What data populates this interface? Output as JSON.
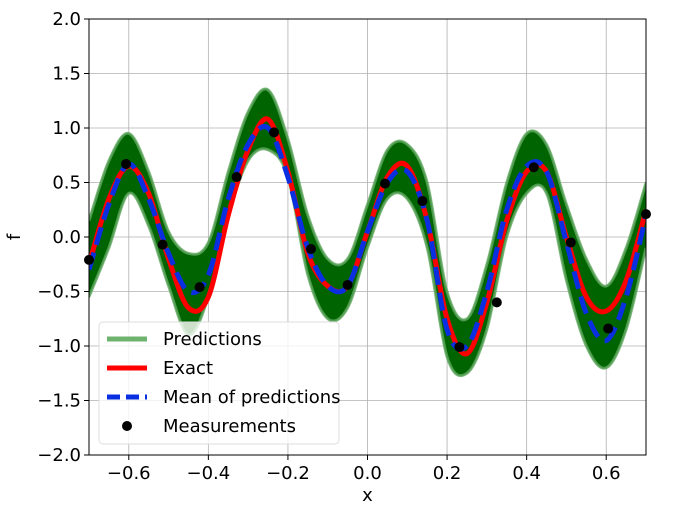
{
  "chart_data": {
    "type": "line",
    "title": "",
    "xlabel": "x",
    "ylabel": "f",
    "xlim": [
      -0.7,
      0.7
    ],
    "ylim": [
      -2.0,
      2.0
    ],
    "grid": true,
    "x_ticks": [
      -0.6,
      -0.4,
      -0.2,
      0.0,
      0.2,
      0.4,
      0.6
    ],
    "x_tick_labels": [
      "−0.6",
      "−0.4",
      "−0.2",
      "0.0",
      "0.2",
      "0.4",
      "0.6"
    ],
    "y_ticks": [
      -2.0,
      -1.5,
      -1.0,
      -0.5,
      0.0,
      0.5,
      1.0,
      1.5,
      2.0
    ],
    "y_tick_labels": [
      "−2.0",
      "−1.5",
      "−1.0",
      "−0.5",
      "0.0",
      "0.5",
      "1.0",
      "1.5",
      "2.0"
    ],
    "legend_position": "lower-left",
    "series": [
      {
        "name": "Predictions",
        "style": "band",
        "color": "#006400",
        "legend_color": "#6db26d",
        "x": [
          -0.7,
          -0.65,
          -0.6,
          -0.55,
          -0.5,
          -0.45,
          -0.4,
          -0.35,
          -0.3,
          -0.25,
          -0.2,
          -0.15,
          -0.1,
          -0.05,
          0.0,
          0.05,
          0.1,
          0.15,
          0.2,
          0.25,
          0.3,
          0.35,
          0.4,
          0.45,
          0.5,
          0.55,
          0.6,
          0.65,
          0.7
        ],
        "upper": [
          0.15,
          0.7,
          0.95,
          0.6,
          0.05,
          -0.15,
          -0.05,
          0.6,
          1.15,
          1.35,
          0.9,
          0.2,
          -0.2,
          -0.2,
          0.3,
          0.8,
          0.85,
          0.5,
          -0.5,
          -0.75,
          -0.25,
          0.5,
          0.95,
          0.85,
          0.3,
          -0.2,
          -0.45,
          -0.1,
          0.5
        ],
        "lower": [
          -0.55,
          -0.1,
          0.4,
          0.1,
          -0.45,
          -0.9,
          -0.55,
          0.2,
          0.7,
          0.8,
          0.55,
          -0.35,
          -0.75,
          -0.65,
          -0.1,
          0.35,
          0.35,
          -0.1,
          -1.1,
          -1.25,
          -0.85,
          0.0,
          0.4,
          0.4,
          -0.4,
          -1.0,
          -1.2,
          -0.85,
          -0.1
        ]
      },
      {
        "name": "Exact",
        "style": "solid",
        "color": "#ff0000",
        "x": [
          -0.7,
          -0.65,
          -0.6,
          -0.55,
          -0.5,
          -0.45,
          -0.4,
          -0.35,
          -0.3,
          -0.25,
          -0.2,
          -0.15,
          -0.1,
          -0.05,
          0.0,
          0.05,
          0.1,
          0.15,
          0.2,
          0.25,
          0.3,
          0.35,
          0.4,
          0.45,
          0.5,
          0.55,
          0.6,
          0.65,
          0.7
        ],
        "y": [
          -0.25,
          0.35,
          0.65,
          0.4,
          -0.2,
          -0.65,
          -0.55,
          0.2,
          0.8,
          1.08,
          0.6,
          -0.15,
          -0.45,
          -0.45,
          0.05,
          0.55,
          0.65,
          0.15,
          -0.75,
          -1.07,
          -0.6,
          0.15,
          0.6,
          0.6,
          0.0,
          -0.55,
          -0.68,
          -0.4,
          0.25
        ]
      },
      {
        "name": "Mean of predictions",
        "style": "dashed",
        "color": "#0a2fe0",
        "x": [
          -0.7,
          -0.65,
          -0.6,
          -0.55,
          -0.5,
          -0.45,
          -0.4,
          -0.35,
          -0.3,
          -0.25,
          -0.2,
          -0.15,
          -0.1,
          -0.05,
          0.0,
          0.05,
          0.1,
          0.15,
          0.2,
          0.25,
          0.3,
          0.35,
          0.4,
          0.45,
          0.5,
          0.55,
          0.6,
          0.65,
          0.7
        ],
        "y": [
          -0.3,
          0.3,
          0.67,
          0.35,
          -0.15,
          -0.5,
          -0.35,
          0.35,
          0.85,
          1.0,
          0.55,
          -0.1,
          -0.45,
          -0.45,
          0.05,
          0.5,
          0.6,
          0.15,
          -0.85,
          -1.0,
          -0.5,
          0.25,
          0.65,
          0.6,
          -0.05,
          -0.7,
          -0.95,
          -0.55,
          0.2
        ]
      },
      {
        "name": "Measurements",
        "style": "markers",
        "color": "#000000",
        "x": [
          -0.7,
          -0.607,
          -0.515,
          -0.422,
          -0.329,
          -0.235,
          -0.142,
          -0.05,
          0.044,
          0.138,
          0.231,
          0.325,
          0.418,
          0.511,
          0.605,
          0.7
        ],
        "y": [
          -0.21,
          0.67,
          -0.07,
          -0.46,
          0.55,
          0.96,
          -0.11,
          -0.44,
          0.49,
          0.33,
          -1.01,
          -0.6,
          0.64,
          -0.05,
          -0.84,
          0.21
        ]
      }
    ]
  }
}
